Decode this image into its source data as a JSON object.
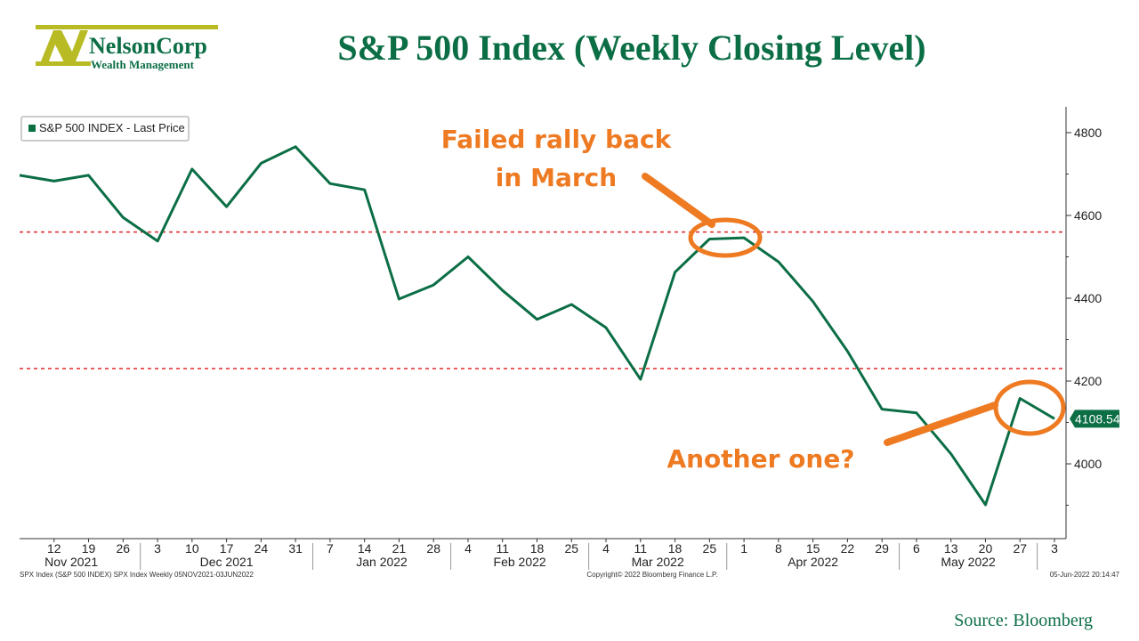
{
  "header": {
    "title": "S&P 500 Index (Weekly Closing Level)",
    "logo_name": "NelsonCorp",
    "logo_sub": "Wealth Management"
  },
  "source": "Source: Bloomberg",
  "footer": {
    "left": "SPX Index (S&P 500 INDEX) SPX Index  Weekly 05NOV2021-03JUN2022",
    "center": "Copyright© 2022 Bloomberg Finance L.P.",
    "right": "05-Jun-2022 20:14:47"
  },
  "annotations": {
    "rally_line1": "Failed rally back",
    "rally_line2": "in March",
    "another": "Another one?"
  },
  "colors": {
    "series": "#0b6e45",
    "reference": "#e02a2a",
    "annotation": "#ee7a22",
    "logo": "#b8bb24"
  },
  "chart_data": {
    "type": "line",
    "title": "S&P 500 Index (Weekly Closing Level)",
    "ylim": [
      3880,
      4840
    ],
    "yticks": [
      4000,
      4200,
      4400,
      4600,
      4800
    ],
    "legend": {
      "label": "S&P 500 INDEX - Last Price",
      "placement": "top-left"
    },
    "last_value_label": "4108.54",
    "grid": false,
    "x": [
      "2021-11-05",
      "2021-11-12",
      "2021-11-19",
      "2021-11-26",
      "2021-12-03",
      "2021-12-10",
      "2021-12-17",
      "2021-12-24",
      "2021-12-31",
      "2022-01-07",
      "2022-01-14",
      "2022-01-21",
      "2022-01-28",
      "2022-02-04",
      "2022-02-11",
      "2022-02-18",
      "2022-02-25",
      "2022-03-04",
      "2022-03-11",
      "2022-03-18",
      "2022-03-25",
      "2022-04-01",
      "2022-04-08",
      "2022-04-15",
      "2022-04-22",
      "2022-04-29",
      "2022-05-06",
      "2022-05-13",
      "2022-05-20",
      "2022-05-27",
      "2022-06-03"
    ],
    "series": [
      {
        "name": "S&P 500 INDEX - Last Price",
        "values": [
          4697,
          4683,
          4697,
          4595,
          4538,
          4712,
          4621,
          4726,
          4766,
          4677,
          4662,
          4398,
          4432,
          4500,
          4419,
          4349,
          4385,
          4329,
          4204,
          4463,
          4543,
          4546,
          4488,
          4392,
          4272,
          4132,
          4123,
          4024,
          3901,
          4158,
          4109
        ]
      }
    ],
    "reference_lines": [
      4560,
      4230
    ],
    "xtick_labels": [
      "12",
      "19",
      "26",
      "3",
      "10",
      "17",
      "24",
      "31",
      "7",
      "14",
      "21",
      "28",
      "4",
      "11",
      "18",
      "25",
      "4",
      "11",
      "18",
      "25",
      "1",
      "8",
      "15",
      "22",
      "29",
      "6",
      "13",
      "20",
      "27",
      "3"
    ],
    "months": [
      "Nov 2021",
      "Dec 2021",
      "Jan 2022",
      "Feb 2022",
      "Mar 2022",
      "Apr 2022",
      "May 2022"
    ]
  }
}
